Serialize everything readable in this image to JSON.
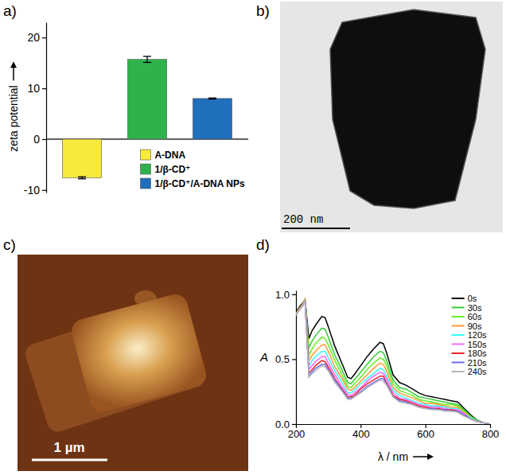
{
  "panel_labels": [
    "a)",
    "b)",
    "c)",
    "d)"
  ],
  "images": [
    {
      "scale_bar": "200 nm"
    },
    {
      "scale_bar": "1 µm"
    }
  ],
  "chart_data": [
    {
      "type": "bar",
      "y_label": "zeta potential",
      "categories": [
        "A-DNA",
        "1/β-CD⁺",
        "1/β-CD⁺/A-DNA NPs"
      ],
      "values": [
        -7.6,
        15.7,
        8.0
      ],
      "errors": [
        0.2,
        0.6,
        0.1
      ],
      "colors": [
        "#f7ea3c",
        "#2fb24c",
        "#1f6fbd"
      ],
      "ylim": [
        -10.5,
        23
      ],
      "yticks": [
        -10,
        0,
        10,
        20
      ],
      "legend": "lower right",
      "tick_labels": "y"
    },
    {
      "type": "line",
      "x_label": "λ / nm",
      "y_label": "A",
      "x": [
        200,
        210,
        220,
        228,
        240,
        250,
        260,
        280,
        290,
        300,
        320,
        340,
        360,
        370,
        380,
        400,
        420,
        440,
        460,
        470,
        480,
        500,
        520,
        540,
        560,
        580,
        600,
        620,
        640,
        660,
        680,
        700,
        720,
        740,
        760,
        780,
        800
      ],
      "xlim": [
        200,
        800
      ],
      "xticks": [
        200,
        400,
        600,
        800
      ],
      "ylim": [
        0,
        1.03
      ],
      "yticks": [
        {
          "value": 0,
          "label": "0.0"
        },
        {
          "value": 0.5,
          "label": "0.5"
        },
        {
          "value": 1,
          "label": "1.0"
        }
      ],
      "legend": "upper right",
      "series": [
        {
          "name": "0s",
          "color": "#000000",
          "values": [
            0.86,
            0.9,
            0.93,
            0.96,
            0.66,
            0.72,
            0.76,
            0.83,
            0.82,
            0.75,
            0.6,
            0.48,
            0.36,
            0.35,
            0.38,
            0.45,
            0.52,
            0.58,
            0.63,
            0.62,
            0.55,
            0.38,
            0.32,
            0.3,
            0.27,
            0.24,
            0.22,
            0.21,
            0.2,
            0.19,
            0.18,
            0.17,
            0.12,
            0.07,
            0.03,
            0.01,
            0
          ]
        },
        {
          "name": "30s",
          "color": "#33cc33",
          "values": [
            0.85,
            0.89,
            0.92,
            0.96,
            0.59,
            0.64,
            0.68,
            0.74,
            0.73,
            0.67,
            0.53,
            0.43,
            0.32,
            0.31,
            0.34,
            0.4,
            0.46,
            0.52,
            0.56,
            0.55,
            0.49,
            0.34,
            0.28,
            0.27,
            0.24,
            0.21,
            0.2,
            0.19,
            0.18,
            0.17,
            0.16,
            0.15,
            0.11,
            0.06,
            0.03,
            0.01,
            0
          ]
        },
        {
          "name": "60s",
          "color": "#66ee22",
          "values": [
            0.85,
            0.89,
            0.92,
            0.96,
            0.53,
            0.58,
            0.62,
            0.67,
            0.66,
            0.61,
            0.49,
            0.39,
            0.29,
            0.28,
            0.31,
            0.36,
            0.42,
            0.47,
            0.51,
            0.5,
            0.45,
            0.31,
            0.26,
            0.24,
            0.22,
            0.19,
            0.18,
            0.17,
            0.16,
            0.15,
            0.15,
            0.14,
            0.1,
            0.06,
            0.02,
            0.01,
            0
          ]
        },
        {
          "name": "90s",
          "color": "#ff9933",
          "values": [
            0.85,
            0.89,
            0.92,
            0.96,
            0.49,
            0.53,
            0.56,
            0.61,
            0.61,
            0.56,
            0.44,
            0.36,
            0.27,
            0.26,
            0.28,
            0.33,
            0.38,
            0.43,
            0.47,
            0.46,
            0.41,
            0.28,
            0.24,
            0.22,
            0.2,
            0.18,
            0.16,
            0.16,
            0.15,
            0.14,
            0.13,
            0.13,
            0.09,
            0.05,
            0.02,
            0.01,
            0
          ]
        },
        {
          "name": "120s",
          "color": "#33ffff",
          "values": [
            0.84,
            0.88,
            0.91,
            0.95,
            0.45,
            0.49,
            0.52,
            0.56,
            0.56,
            0.51,
            0.41,
            0.33,
            0.24,
            0.24,
            0.26,
            0.31,
            0.35,
            0.39,
            0.43,
            0.42,
            0.37,
            0.26,
            0.22,
            0.2,
            0.18,
            0.16,
            0.15,
            0.14,
            0.14,
            0.13,
            0.12,
            0.12,
            0.08,
            0.05,
            0.02,
            0.01,
            0
          ]
        },
        {
          "name": "150s",
          "color": "#ff66ff",
          "values": [
            0.84,
            0.88,
            0.91,
            0.95,
            0.42,
            0.45,
            0.48,
            0.52,
            0.52,
            0.47,
            0.38,
            0.3,
            0.23,
            0.22,
            0.24,
            0.28,
            0.33,
            0.37,
            0.4,
            0.39,
            0.35,
            0.24,
            0.2,
            0.19,
            0.17,
            0.15,
            0.14,
            0.13,
            0.13,
            0.12,
            0.11,
            0.11,
            0.08,
            0.04,
            0.02,
            0.01,
            0
          ]
        },
        {
          "name": "180s",
          "color": "#e8202a",
          "values": [
            0.84,
            0.88,
            0.91,
            0.95,
            0.39,
            0.42,
            0.45,
            0.49,
            0.48,
            0.44,
            0.35,
            0.28,
            0.21,
            0.21,
            0.22,
            0.27,
            0.31,
            0.34,
            0.37,
            0.37,
            0.32,
            0.22,
            0.19,
            0.18,
            0.16,
            0.14,
            0.13,
            0.12,
            0.12,
            0.11,
            0.11,
            0.1,
            0.07,
            0.04,
            0.02,
            0.01,
            0
          ]
        },
        {
          "name": "210s",
          "color": "#6b6bf0",
          "values": [
            0.84,
            0.88,
            0.91,
            0.95,
            0.37,
            0.4,
            0.43,
            0.46,
            0.46,
            0.42,
            0.34,
            0.27,
            0.2,
            0.2,
            0.21,
            0.25,
            0.29,
            0.32,
            0.35,
            0.35,
            0.31,
            0.21,
            0.18,
            0.17,
            0.15,
            0.13,
            0.12,
            0.12,
            0.11,
            0.11,
            0.1,
            0.1,
            0.07,
            0.04,
            0.02,
            0.01,
            0
          ]
        },
        {
          "name": "240s",
          "color": "#b8b8b8",
          "values": [
            0.84,
            0.88,
            0.91,
            0.95,
            0.36,
            0.39,
            0.41,
            0.45,
            0.44,
            0.41,
            0.32,
            0.26,
            0.19,
            0.19,
            0.21,
            0.24,
            0.28,
            0.31,
            0.34,
            0.33,
            0.3,
            0.21,
            0.17,
            0.16,
            0.15,
            0.13,
            0.12,
            0.11,
            0.11,
            0.1,
            0.1,
            0.09,
            0.06,
            0.04,
            0.02,
            0.01,
            0
          ]
        }
      ]
    }
  ]
}
